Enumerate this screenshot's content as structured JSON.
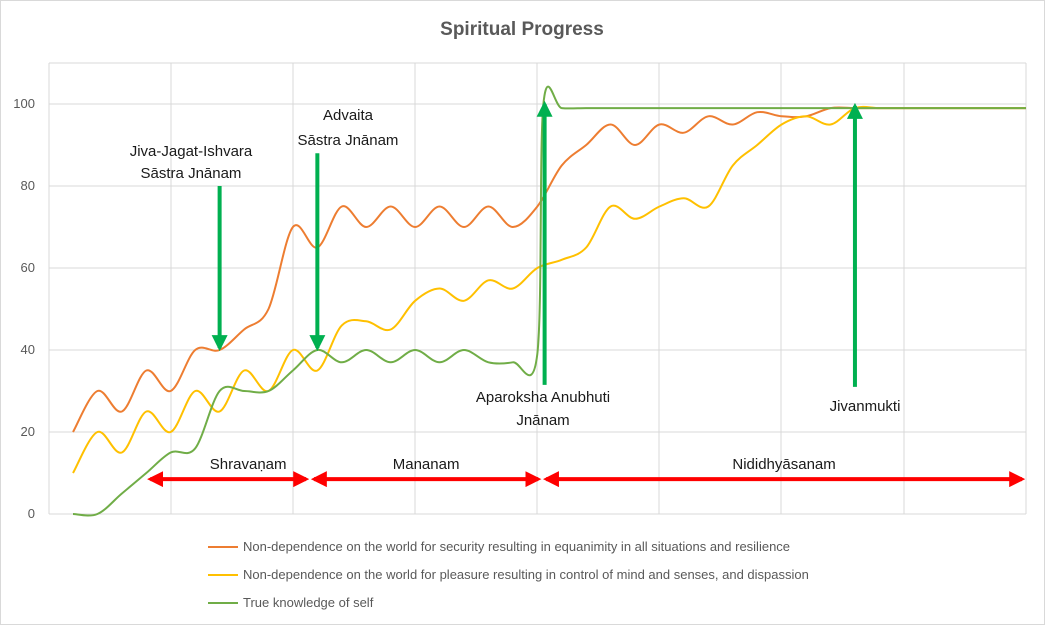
{
  "chart_data": {
    "type": "line",
    "title": "Spiritual Progress",
    "ylim": [
      0,
      110
    ],
    "yticks": [
      0,
      20,
      40,
      60,
      80,
      100
    ],
    "xlim": [
      0,
      39
    ],
    "grid": true,
    "legend_position": "bottom",
    "series": [
      {
        "name": "Non-dependence on the world for security resulting in equanimity in all situations and resilience",
        "color": "#ed7d31",
        "x": [
          0,
          1,
          2,
          3,
          4,
          5,
          6,
          7,
          8,
          9,
          10,
          11,
          12,
          13,
          14,
          15,
          16,
          17,
          18,
          19,
          20,
          21,
          22,
          23,
          24,
          25,
          26,
          27,
          28,
          29,
          30,
          31,
          32,
          33,
          34,
          35,
          36,
          37,
          38,
          39
        ],
        "y": [
          20,
          30,
          25,
          35,
          30,
          40,
          40,
          45,
          50,
          70,
          65,
          75,
          70,
          75,
          70,
          75,
          70,
          75,
          70,
          75,
          85,
          90,
          95,
          90,
          95,
          93,
          97,
          95,
          98,
          97,
          97,
          99,
          99,
          99,
          99,
          99,
          99,
          99,
          99,
          99
        ]
      },
      {
        "name": "Non-dependence on the world for pleasure resulting in control of mind and senses, and dispassion",
        "color": "#ffc000",
        "x": [
          0,
          1,
          2,
          3,
          4,
          5,
          6,
          7,
          8,
          9,
          10,
          11,
          12,
          13,
          14,
          15,
          16,
          17,
          18,
          19,
          20,
          21,
          22,
          23,
          24,
          25,
          26,
          27,
          28,
          29,
          30,
          31,
          32,
          33,
          34,
          35,
          36,
          37,
          38,
          39
        ],
        "y": [
          10,
          20,
          15,
          25,
          20,
          30,
          25,
          35,
          30,
          40,
          35,
          46,
          47,
          45,
          52,
          55,
          52,
          57,
          55,
          60,
          62,
          65,
          75,
          72,
          75,
          77,
          75,
          85,
          90,
          95,
          97,
          95,
          99,
          99,
          99,
          99,
          99,
          99,
          99,
          99
        ]
      },
      {
        "name": "True knowledge of self",
        "color": "#70ad47",
        "x": [
          0,
          1,
          2,
          3,
          4,
          5,
          6,
          7,
          8,
          9,
          10,
          11,
          12,
          13,
          14,
          15,
          16,
          17,
          18,
          19,
          19.25,
          20,
          21,
          22,
          23,
          24,
          25,
          26,
          27,
          28,
          29,
          30,
          31,
          32,
          33,
          34,
          35,
          36,
          37,
          38,
          39
        ],
        "y": [
          0,
          0,
          5,
          10,
          15,
          16,
          30,
          30,
          30,
          35,
          40,
          37,
          40,
          37,
          40,
          37,
          40,
          37,
          37,
          39,
          100,
          99,
          99,
          99,
          99,
          99,
          99,
          99,
          99,
          99,
          99,
          99,
          99,
          99,
          99,
          99,
          99,
          99,
          99,
          99,
          99
        ]
      }
    ],
    "annotations": [
      {
        "text": [
          "Jiva-Jagat-Ishvara",
          "Sāstra Jnānam"
        ],
        "arrow_x": 6,
        "arrow_from_y": 80,
        "arrow_to_y": 40.5,
        "direction": "down"
      },
      {
        "text": [
          "Advaita",
          "Sāstra Jnānam"
        ],
        "arrow_x": 10,
        "arrow_from_y": 88,
        "arrow_to_y": 40.5,
        "direction": "down"
      },
      {
        "text": [
          "Aparoksha Anubhuti",
          "Jnānam"
        ],
        "arrow_x": 19.3,
        "arrow_from_y": 31.5,
        "arrow_to_y": 100,
        "direction": "up"
      },
      {
        "text": [
          "Jivanmukti"
        ],
        "arrow_x": 32,
        "arrow_from_y": 31,
        "arrow_to_y": 99.5,
        "direction": "up"
      }
    ],
    "phases": [
      {
        "label": "Shravaṇam",
        "from": 3,
        "to": 9.7
      },
      {
        "label": "Mananam",
        "from": 9.7,
        "to": 19.2
      },
      {
        "label": "Nididhyāsanam",
        "from": 19.2,
        "to": 39
      }
    ],
    "phase_y": 8.5
  }
}
